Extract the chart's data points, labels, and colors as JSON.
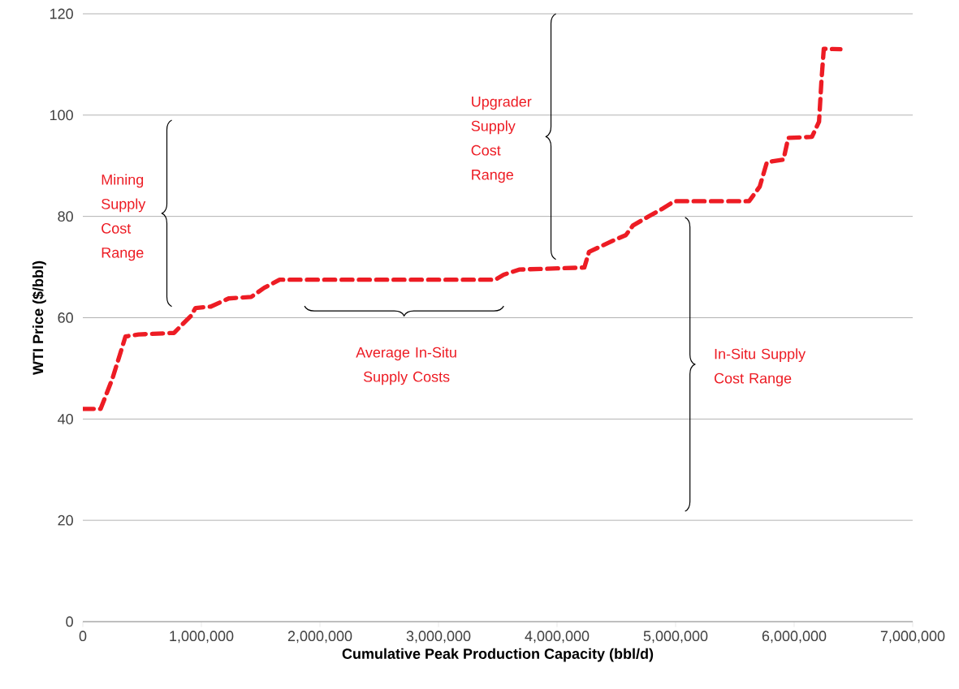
{
  "chart_data": {
    "type": "line",
    "xlabel": "Cumulative Peak Production Capacity (bbl/d)",
    "ylabel": "WTI Price ($/bbl)",
    "x": [
      0,
      150000,
      250000,
      360000,
      470000,
      770000,
      840000,
      910000,
      950000,
      1080000,
      1230000,
      1420000,
      1530000,
      1660000,
      1750000,
      3480000,
      3550000,
      3680000,
      4230000,
      4270000,
      4470000,
      4580000,
      4640000,
      4780000,
      4880000,
      4990000,
      5620000,
      5710000,
      5770000,
      5910000,
      5950000,
      6150000,
      6210000,
      6230000,
      6250000,
      6390000
    ],
    "series": [
      {
        "color": "#ed1c24",
        "values": [
          42,
          42,
          48,
          56.3,
          56.7,
          57,
          58.7,
          60.3,
          61.9,
          62.2,
          63.8,
          64.1,
          65.9,
          67.5,
          67.5,
          67.5,
          68.5,
          69.5,
          69.9,
          73,
          75.2,
          76.3,
          78.2,
          80.1,
          81.4,
          83,
          83,
          85.9,
          90.7,
          91.2,
          95.5,
          95.7,
          98.7,
          106.7,
          113.1,
          113
        ]
      }
    ],
    "line_style": "dashed",
    "marker": "none",
    "grid": "y",
    "legend": false,
    "xlim": [
      0,
      7000000
    ],
    "ylim": [
      0,
      120
    ],
    "xticks": [
      {
        "value": 0,
        "label": "0"
      },
      {
        "value": 1000000,
        "label": "1,000,000"
      },
      {
        "value": 2000000,
        "label": "2,000,000"
      },
      {
        "value": 3000000,
        "label": "3,000,000"
      },
      {
        "value": 4000000,
        "label": "4,000,000"
      },
      {
        "value": 5000000,
        "label": "5,000,000"
      },
      {
        "value": 6000000,
        "label": "6,000,000"
      },
      {
        "value": 7000000,
        "label": "7,000,000"
      }
    ],
    "yticks": [
      0,
      20,
      40,
      60,
      80,
      100,
      120
    ],
    "annotations": [
      "Mining Supply Cost Range",
      "Upgrader Supply Cost Range",
      "Average In-Situ Supply Costs",
      "In-Situ Supply Cost Range"
    ]
  }
}
